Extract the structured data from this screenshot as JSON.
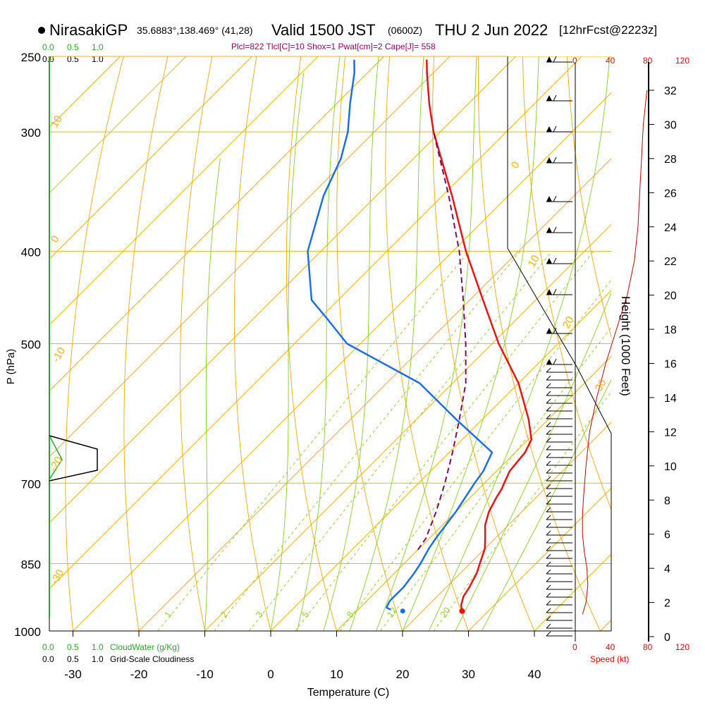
{
  "header": {
    "station": "NirasakiGP",
    "coords": "35.6883°,138.469° (41,28)",
    "valid": "Valid 1500 JST",
    "utc": "(0600Z)",
    "day": "THU 2 Jun 2022",
    "forecast": "[12hrFcst@2223z]"
  },
  "params": "Plcl=822 Tlcl[C]=10 Shox=1 Pwat[cm]=2 Cape[J]= 558",
  "legend": {
    "cloudwater_label": "CloudWater (g/Kg)",
    "cloudiness_label": "Grid-Scale Cloudiness",
    "scale_ticks": [
      "0.0",
      "0.5",
      "1.0"
    ],
    "speed_label": "Speed (kt)",
    "speed_ticks": [
      "0",
      "40",
      "80",
      "120"
    ]
  },
  "colors": {
    "temperature": "#ee1111",
    "dewpoint": "#1a6fe8",
    "parcel": "#7a0a6a",
    "isotherm": "#f4b400",
    "dry_adiabat": "#f0a800",
    "moist_adiabat": "#88cc22",
    "mixing_ratio": "#99cc44",
    "cloudwater": "#22aa22",
    "wind_speed": "#cc0000"
  },
  "chart_data": {
    "type": "skew-t",
    "title": "NirasakiGP Valid 1500 JST (0600Z) THU 2 Jun 2022",
    "xlabel": "Temperature (C)",
    "ylabel": "P (hPa)",
    "y2label": "Height (1000 Feet)",
    "x_ticks": [
      -30,
      -20,
      -10,
      0,
      10,
      20,
      30,
      40
    ],
    "p_ticks": [
      250,
      300,
      400,
      500,
      700,
      850,
      1000
    ],
    "height_ticks_kft": [
      0,
      2,
      4,
      6,
      8,
      10,
      12,
      14,
      16,
      18,
      20,
      22,
      24,
      26,
      28,
      30,
      32
    ],
    "mixing_ratio_labels": [
      "1",
      "2",
      "3",
      "5",
      "8",
      "12",
      "20"
    ],
    "isotherm_labels": [
      "10",
      "0",
      "-10",
      "-20",
      "-30",
      "0",
      "10",
      "20",
      "30"
    ],
    "temperature": {
      "p": [
        953,
        940,
        920,
        900,
        870,
        850,
        820,
        800,
        775,
        750,
        725,
        710,
        700,
        680,
        650,
        630,
        600,
        550,
        500,
        450,
        400,
        350,
        300,
        280,
        260,
        252
      ],
      "t": [
        26,
        25,
        24,
        23.5,
        22.5,
        21.5,
        20,
        18.5,
        16.5,
        15,
        14,
        13.5,
        13,
        12,
        11.5,
        10.5,
        7,
        0,
        -9,
        -18,
        -28,
        -38.5,
        -51,
        -56,
        -61,
        -63
      ]
    },
    "dewpoint": {
      "p": [
        950,
        945,
        930,
        900,
        870,
        850,
        820,
        800,
        750,
        700,
        680,
        650,
        600,
        550,
        500,
        470,
        450,
        400,
        350,
        320,
        300,
        280,
        260,
        252
      ],
      "td": [
        15,
        14,
        13.5,
        13.5,
        13,
        12.5,
        11.5,
        11,
        10,
        8.5,
        8,
        6.5,
        -4,
        -15,
        -32,
        -39,
        -44,
        -52,
        -58,
        -61,
        -64,
        -68,
        -72,
        -74
      ]
    },
    "parcel": {
      "p": [
        822,
        800,
        750,
        700,
        650,
        600,
        550,
        500,
        450,
        400,
        350,
        300
      ],
      "t": [
        10,
        9.5,
        7,
        4,
        0.5,
        -3.5,
        -8,
        -14,
        -21,
        -29,
        -39,
        -51
      ]
    },
    "surface_points": {
      "t": 26,
      "td": 17,
      "p": 953
    },
    "wind_speed_kt": {
      "h_kft": [
        1.3,
        2,
        3,
        4,
        5,
        6,
        7,
        8,
        10,
        12,
        14,
        16,
        18,
        20,
        22,
        24,
        26,
        28,
        30,
        31,
        32
      ],
      "speed": [
        8,
        12,
        14,
        13,
        10,
        8,
        8,
        9,
        12,
        16,
        24,
        34,
        46,
        58,
        66,
        70,
        72,
        74,
        76,
        78,
        80
      ]
    }
  }
}
